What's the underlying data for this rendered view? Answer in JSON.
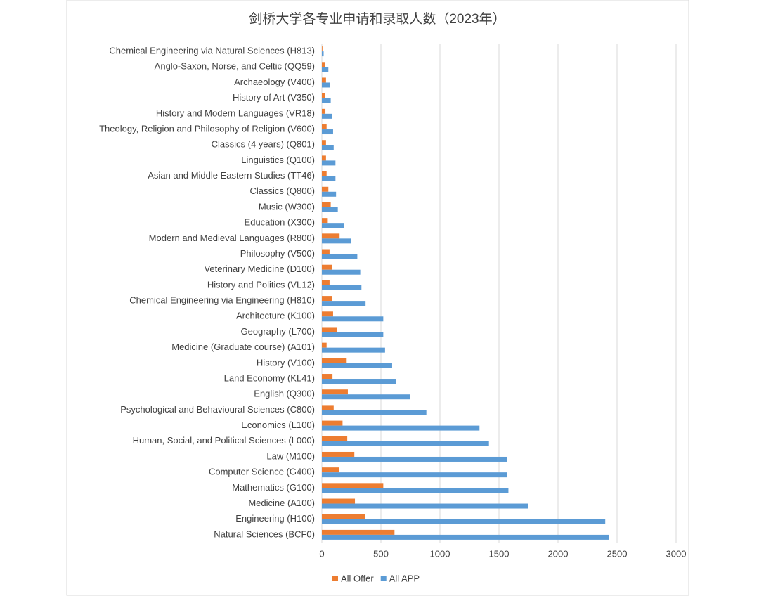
{
  "chart_data": {
    "type": "bar",
    "orientation": "horizontal",
    "title": "剑桥大学各专业申请和录取人数（2023年）",
    "categories": [
      "Natural Sciences (BCF0)",
      "Engineering (H100)",
      "Medicine (A100)",
      "Mathematics (G100)",
      "Computer Science (G400)",
      "Law (M100)",
      "Human, Social, and Political Sciences (L000)",
      "Economics (L100)",
      "Psychological and Behavioural Sciences (C800)",
      "English (Q300)",
      "Land Economy (KL41)",
      "History (V100)",
      "Medicine (Graduate course) (A101)",
      "Geography (L700)",
      "Architecture (K100)",
      "Chemical Engineering via Engineering (H810)",
      "History and Politics (VL12)",
      "Veterinary Medicine (D100)",
      "Philosophy (V500)",
      "Modern and Medieval Languages (R800)",
      "Education (X300)",
      "Music (W300)",
      "Classics (Q800)",
      "Asian and Middle Eastern Studies (TT46)",
      "Linguistics (Q100)",
      "Classics (4 years) (Q801)",
      "Theology, Religion and Philosophy of Religion (V600)",
      "History and Modern Languages (VR18)",
      "History of Art (V350)",
      "Archaeology (V400)",
      "Anglo-Saxon, Norse, and Celtic (QQ59)",
      "Chemical Engineering via Natural Sciences (H813)"
    ],
    "series": [
      {
        "name": "All Offer",
        "color": "#ed7d31",
        "values": [
          615,
          365,
          280,
          520,
          145,
          275,
          215,
          175,
          100,
          220,
          90,
          210,
          40,
          130,
          95,
          85,
          65,
          85,
          65,
          150,
          50,
          75,
          55,
          40,
          35,
          35,
          40,
          30,
          25,
          35,
          25,
          5
        ]
      },
      {
        "name": "All APP",
        "color": "#5b9bd5",
        "values": [
          2430,
          2400,
          1745,
          1580,
          1570,
          1570,
          1415,
          1335,
          885,
          745,
          625,
          595,
          535,
          520,
          520,
          370,
          335,
          325,
          300,
          245,
          185,
          135,
          120,
          115,
          115,
          100,
          95,
          85,
          75,
          70,
          55,
          15
        ]
      }
    ],
    "xlim": [
      0,
      3000
    ],
    "xticks": [
      0,
      500,
      1000,
      1500,
      2000,
      2500,
      3000
    ],
    "grid": true,
    "legend": "bottom"
  }
}
